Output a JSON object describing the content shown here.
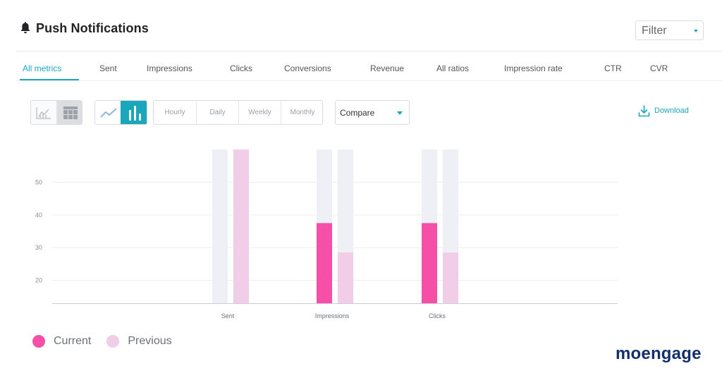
{
  "header": {
    "title": "Push Notifications",
    "filter_label": "Filter"
  },
  "tabs": [
    {
      "label": "All metrics",
      "active": true
    },
    {
      "label": "Sent"
    },
    {
      "label": "Impressions"
    },
    {
      "label": "Clicks"
    },
    {
      "label": "Conversions"
    },
    {
      "label": "Revenue"
    },
    {
      "label": "All ratios"
    },
    {
      "label": "Impression rate"
    },
    {
      "label": "CTR"
    },
    {
      "label": "CVR"
    }
  ],
  "toolbar": {
    "view_toggle": [
      "chart-view-icon",
      "table-view-icon"
    ],
    "chart_type_toggle": [
      "line-chart-icon",
      "bar-chart-icon"
    ],
    "granularity": [
      "Hourly",
      "Daily",
      "Weekly",
      "Monthly"
    ],
    "compare_label": "Compare",
    "download_label": "Download"
  },
  "colors": {
    "accent": "#1aa7bc",
    "current": "#f54fa8",
    "previous": "#f1cde8",
    "track": "#eff0f6",
    "logo": "#14306b"
  },
  "chart_data": {
    "type": "bar",
    "categories": [
      "Sent",
      "Impressions",
      "Clicks"
    ],
    "series": [
      {
        "name": "Current",
        "values": [
          null,
          37.5,
          37.5
        ]
      },
      {
        "name": "Previous",
        "values": [
          60,
          28.5,
          28.5
        ]
      }
    ],
    "yticks": [
      20,
      30,
      40,
      50
    ],
    "ylim": [
      13,
      60
    ],
    "grid": true,
    "legend": "bottom-left"
  },
  "legend": [
    {
      "label": "Current"
    },
    {
      "label": "Previous"
    }
  ],
  "logo": {
    "text": "moengage"
  }
}
